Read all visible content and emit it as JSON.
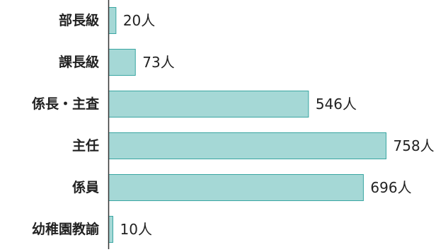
{
  "chart_data": {
    "type": "bar",
    "orientation": "horizontal",
    "categories": [
      "部長級",
      "課長級",
      "係長・主査",
      "主任",
      "係員",
      "幼稚園教諭"
    ],
    "values": [
      20,
      73,
      546,
      758,
      696,
      10
    ],
    "value_labels": [
      "20人",
      "73人",
      "546人",
      "758人",
      "696人",
      "10人"
    ],
    "unit": "人",
    "title": "",
    "xlabel": "",
    "ylabel": "",
    "xlim": [
      0,
      758
    ],
    "grid": false,
    "legend": "none",
    "colors": {
      "bar_fill": "#a5d8d6",
      "bar_stroke": "#3aa6a2",
      "axis": "#333333",
      "text": "#222222"
    }
  }
}
